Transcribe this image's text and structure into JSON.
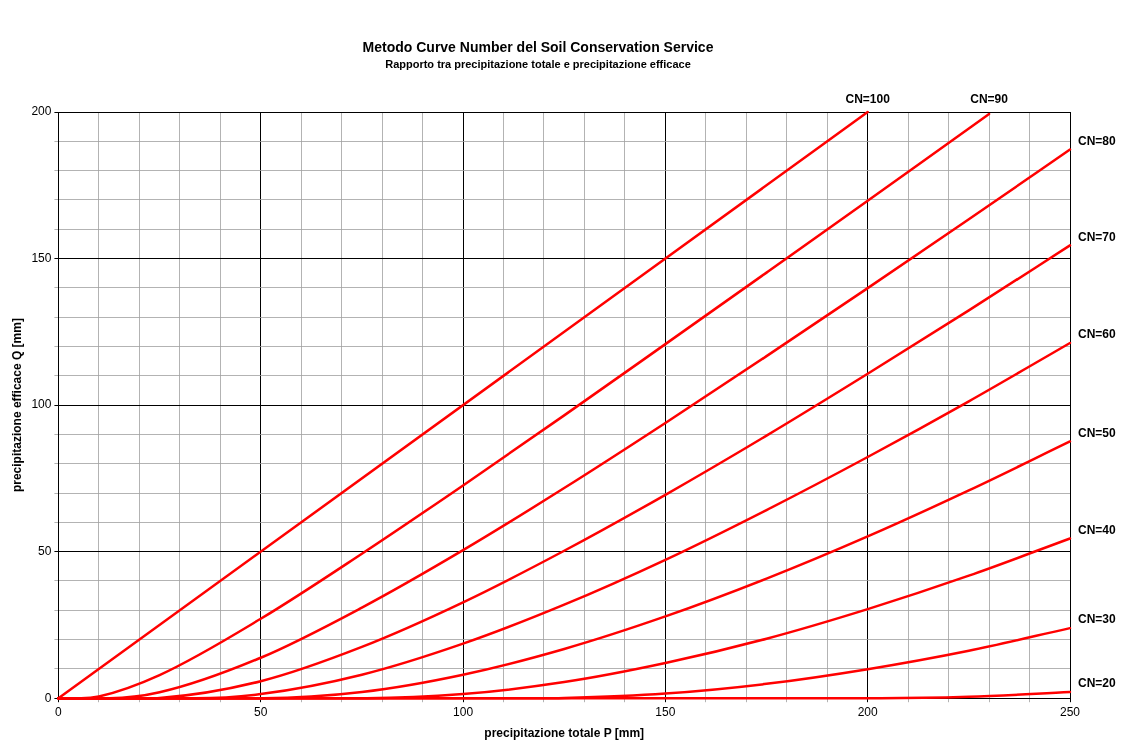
{
  "chart_data": {
    "type": "line",
    "title": "Metodo Curve Number del Soil Conservation Service",
    "subtitle": "Rapporto tra precipitazione totale e precipitazione efficace",
    "xlabel": "precipitazione totale P [mm]",
    "ylabel": "precipitazione efficace Q [mm]",
    "xlim": [
      0,
      250
    ],
    "ylim": [
      0,
      200
    ],
    "xticks": [
      0,
      {
        "value": 10,
        "label": null
      },
      {
        "value": 20,
        "label": null
      },
      {
        "value": 30,
        "label": null
      },
      {
        "value": 40,
        "label": null
      },
      50,
      {
        "value": 60,
        "label": null
      },
      {
        "value": 70,
        "label": null
      },
      {
        "value": 80,
        "label": null
      },
      {
        "value": 90,
        "label": null
      },
      100,
      {
        "value": 110,
        "label": null
      },
      {
        "value": 120,
        "label": null
      },
      {
        "value": 130,
        "label": null
      },
      {
        "value": 140,
        "label": null
      },
      150,
      {
        "value": 160,
        "label": null
      },
      {
        "value": 170,
        "label": null
      },
      {
        "value": 180,
        "label": null
      },
      {
        "value": 190,
        "label": null
      },
      200,
      {
        "value": 210,
        "label": null
      },
      {
        "value": 220,
        "label": null
      },
      {
        "value": 230,
        "label": null
      },
      {
        "value": 240,
        "label": null
      },
      250
    ],
    "yticks": [
      0,
      {
        "value": 10,
        "label": null
      },
      {
        "value": 20,
        "label": null
      },
      {
        "value": 30,
        "label": null
      },
      {
        "value": 40,
        "label": null
      },
      50,
      {
        "value": 60,
        "label": null
      },
      {
        "value": 70,
        "label": null
      },
      {
        "value": 80,
        "label": null
      },
      {
        "value": 90,
        "label": null
      },
      100,
      {
        "value": 110,
        "label": null
      },
      {
        "value": 120,
        "label": null
      },
      {
        "value": 130,
        "label": null
      },
      {
        "value": 140,
        "label": null
      },
      150,
      {
        "value": 160,
        "label": null
      },
      {
        "value": 170,
        "label": null
      },
      {
        "value": 180,
        "label": null
      },
      {
        "value": 190,
        "label": null
      },
      200
    ],
    "grid": true,
    "legend": false,
    "marker": "none",
    "line_style": "solid",
    "series": [
      {
        "name": "CN=100",
        "color": "#ff0000",
        "x": [
          0,
          200
        ],
        "values": [
          0,
          200
        ]
      },
      {
        "name": "CN=90",
        "color": "#ff0000",
        "x": [
          0,
          5.6,
          10,
          25,
          50,
          75,
          100,
          125,
          150,
          175,
          200,
          225,
          230
        ],
        "values": [
          0,
          0,
          0.6,
          7.9,
          27.1,
          49.3,
          72.6,
          96.5,
          120.8,
          145.2,
          169.7,
          194.4,
          199.3
        ]
      },
      {
        "name": "CN=80",
        "color": "#ff0000",
        "x": [
          0,
          12.7,
          25,
          50,
          75,
          100,
          125,
          150,
          175,
          200,
          225,
          250
        ],
        "values": [
          0,
          0,
          2,
          13.8,
          30.9,
          50.5,
          71.7,
          93.9,
          116.7,
          139.9,
          163.4,
          187.2
        ]
      },
      {
        "name": "CN=70",
        "color": "#ff0000",
        "x": [
          0,
          21.8,
          25,
          50,
          75,
          100,
          125,
          150,
          175,
          200,
          225,
          250
        ],
        "values": [
          0,
          0,
          0.1,
          5.8,
          17.5,
          32.7,
          50.3,
          69.4,
          89.6,
          110.7,
          132.3,
          154.5
        ]
      },
      {
        "name": "CN=60",
        "color": "#ff0000",
        "x": [
          0,
          33.9,
          50,
          75,
          100,
          125,
          150,
          175,
          200,
          225,
          250
        ],
        "values": [
          0,
          0,
          1.4,
          8,
          18.6,
          31.9,
          47.2,
          64.2,
          82.3,
          101.3,
          121.2
        ]
      },
      {
        "name": "CN=50",
        "color": "#ff0000",
        "x": [
          0,
          50.8,
          75,
          100,
          125,
          150,
          175,
          200,
          225,
          250
        ],
        "values": [
          0,
          0,
          2.1,
          8,
          16.8,
          27.9,
          40.8,
          55.2,
          70.9,
          87.6
        ]
      },
      {
        "name": "CN=40",
        "color": "#ff0000",
        "x": [
          0,
          76.2,
          100,
          125,
          150,
          175,
          200,
          225,
          250
        ],
        "values": [
          0,
          0,
          1.4,
          5.5,
          12,
          20.3,
          30.4,
          41.8,
          54.5
        ]
      },
      {
        "name": "CN=30",
        "color": "#ff0000",
        "x": [
          0,
          118.5,
          125,
          150,
          175,
          200,
          225,
          250
        ],
        "values": [
          0,
          0,
          0.1,
          1.6,
          4.9,
          9.9,
          16.2,
          23.9
        ]
      },
      {
        "name": "CN=20",
        "color": "#ff0000",
        "x": [
          0,
          203.2,
          225,
          250
        ],
        "values": [
          0,
          0,
          0.5,
          2.1
        ]
      }
    ]
  }
}
